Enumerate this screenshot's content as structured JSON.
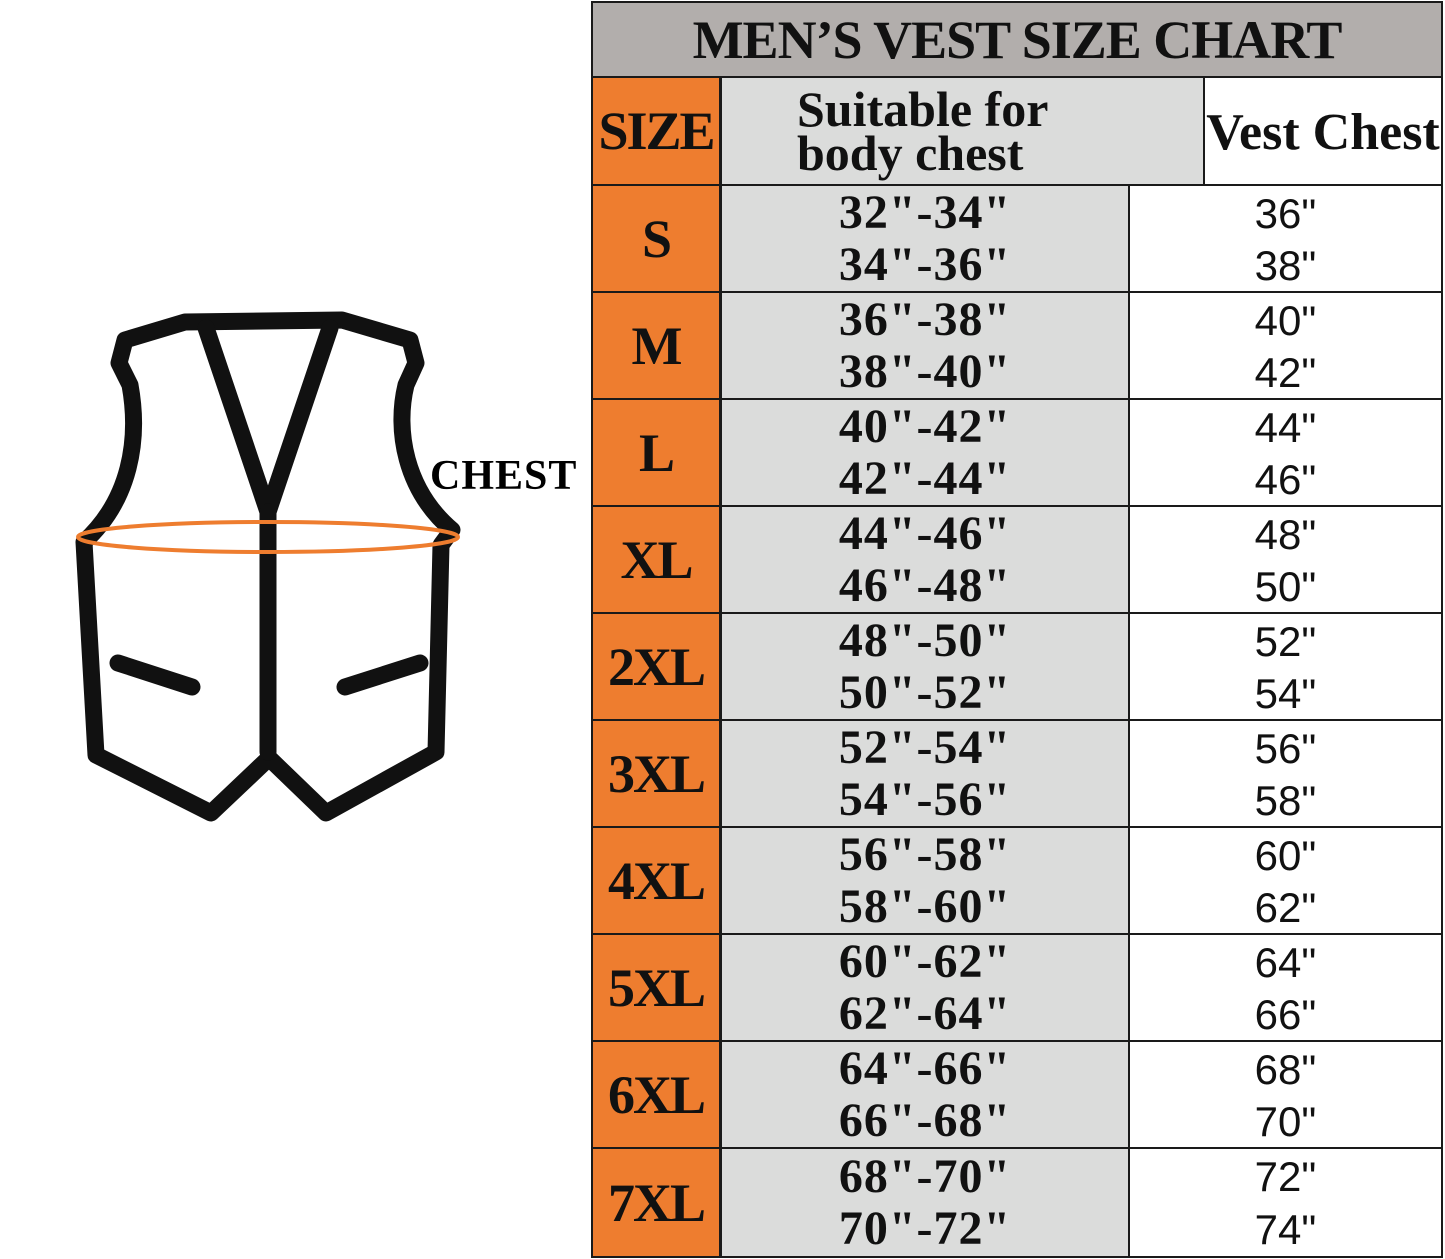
{
  "colors": {
    "orange": "#ee7d2f",
    "title_bg": "#b2aeac",
    "col_bg": "#dbdcdb",
    "outline": "#111111"
  },
  "illustration": {
    "label": "CHEST",
    "icon": "vest-icon"
  },
  "chart_data": {
    "type": "table",
    "title": "MEN’S VEST SIZE CHART",
    "columns": [
      "SIZE",
      "Suitable for body chest",
      "Vest Chest"
    ],
    "column_lines": {
      "suitable": [
        "Suitable for",
        "body chest"
      ]
    },
    "rows": [
      {
        "size": "S",
        "body": [
          "32\"-34\"",
          "34\"-36\""
        ],
        "vest": [
          "36\"",
          "38\""
        ]
      },
      {
        "size": "M",
        "body": [
          "36\"-38\"",
          "38\"-40\""
        ],
        "vest": [
          "40\"",
          "42\""
        ]
      },
      {
        "size": "L",
        "body": [
          "40\"-42\"",
          "42\"-44\""
        ],
        "vest": [
          "44\"",
          "46\""
        ]
      },
      {
        "size": "XL",
        "body": [
          "44\"-46\"",
          "46\"-48\""
        ],
        "vest": [
          "48\"",
          "50\""
        ]
      },
      {
        "size": "2XL",
        "body": [
          "48\"-50\"",
          "50\"-52\""
        ],
        "vest": [
          "52\"",
          "54\""
        ]
      },
      {
        "size": "3XL",
        "body": [
          "52\"-54\"",
          "54\"-56\""
        ],
        "vest": [
          "56\"",
          "58\""
        ]
      },
      {
        "size": "4XL",
        "body": [
          "56\"-58\"",
          "58\"-60\""
        ],
        "vest": [
          "60\"",
          "62\""
        ]
      },
      {
        "size": "5XL",
        "body": [
          "60\"-62\"",
          "62\"-64\""
        ],
        "vest": [
          "64\"",
          "66\""
        ]
      },
      {
        "size": "6XL",
        "body": [
          "64\"-66\"",
          "66\"-68\""
        ],
        "vest": [
          "68\"",
          "70\""
        ]
      },
      {
        "size": "7XL",
        "body": [
          "68\"-70\"",
          "70\"-72\""
        ],
        "vest": [
          "72\"",
          "74\""
        ]
      }
    ]
  }
}
